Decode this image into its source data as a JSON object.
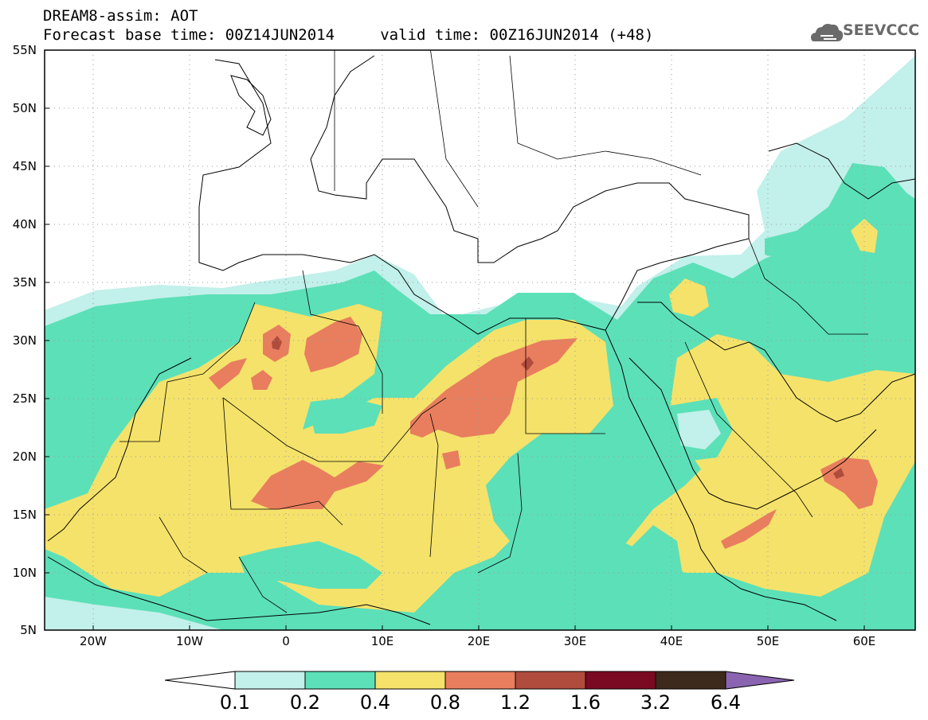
{
  "header": {
    "title_line1": "DREAM8-assim: AOT",
    "title_line2": "Forecast base time: 00Z14JUN2014     valid time: 00Z16JUN2014 (+48)",
    "logo_text": "SEEVCCC"
  },
  "axes": {
    "lat_labels": [
      "55N",
      "50N",
      "45N",
      "40N",
      "35N",
      "30N",
      "25N",
      "20N",
      "15N",
      "10N",
      "5N"
    ],
    "lon_labels": [
      "20W",
      "10W",
      "0",
      "10E",
      "20E",
      "30E",
      "40E",
      "50E",
      "60E"
    ]
  },
  "legend": {
    "labels": [
      "0.1",
      "0.2",
      "0.4",
      "0.8",
      "1.2",
      "1.6",
      "3.2",
      "6.4"
    ],
    "colors": [
      "#ffffff",
      "#c2f0ea",
      "#5ce0b8",
      "#f5e26a",
      "#e87e5e",
      "#b04c3e",
      "#7a0a22",
      "#3e2a1c",
      "#8a64b0"
    ]
  },
  "map": {
    "variable": "AOT",
    "extent": {
      "lon": [
        -25,
        65
      ],
      "lat": [
        5,
        55
      ]
    },
    "colors": {
      "vlight": "#c2f0ea",
      "green": "#5ce0b8",
      "yellow": "#f5e26a",
      "orange": "#e87e5e",
      "brown": "#b04c3e"
    }
  }
}
